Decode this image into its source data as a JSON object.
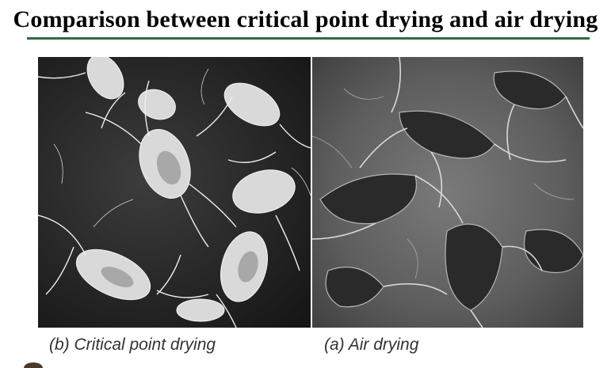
{
  "slide": {
    "title": "Comparison between critical point drying and air drying"
  },
  "images": {
    "left": {
      "caption": "(b) Critical point drying"
    },
    "right": {
      "caption": "(a) Air drying"
    }
  },
  "colors": {
    "title_rule": "#2f6b3f",
    "caption_text": "#333333"
  }
}
